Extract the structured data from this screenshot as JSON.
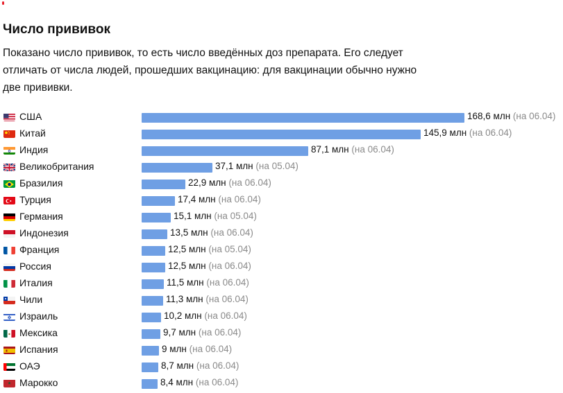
{
  "title": "Число прививок",
  "description": "Показано число прививок, то есть число введённых доз препарата. Его следует отличать от числа людей, прошедших вакцинацию: для вакцинации обычно нужно две прививки.",
  "colors": {
    "bar": "#6f9fe4",
    "date_text": "#8a8a8a",
    "accent_dot": "#e8212b"
  },
  "chart_data": {
    "type": "bar",
    "orientation": "horizontal",
    "unit": "млн",
    "categories": [
      "США",
      "Китай",
      "Индия",
      "Великобритания",
      "Бразилия",
      "Турция",
      "Германия",
      "Индонезия",
      "Франция",
      "Россия",
      "Италия",
      "Чили",
      "Израиль",
      "Мексика",
      "Испания",
      "ОАЭ",
      "Марокко"
    ],
    "values": [
      168.6,
      145.9,
      87.1,
      37.1,
      22.9,
      17.4,
      15.1,
      13.5,
      12.5,
      12.5,
      11.5,
      11.3,
      10.2,
      9.7,
      9,
      8.7,
      8.4
    ],
    "labels": [
      "168,6 млн",
      "145,9 млн",
      "87,1 млн",
      "37,1 млн",
      "22,9 млн",
      "17,4 млн",
      "15,1 млн",
      "13,5 млн",
      "12,5 млн",
      "12,5 млн",
      "11,5 млн",
      "11,3 млн",
      "10,2 млн",
      "9,7 млн",
      "9 млн",
      "8,7 млн",
      "8,4 млн"
    ],
    "dates": [
      "(на 06.04)",
      "(на 06.04)",
      "(на 06.04)",
      "(на 05.04)",
      "(на 06.04)",
      "(на 06.04)",
      "(на 05.04)",
      "(на 06.04)",
      "(на 05.04)",
      "(на 06.04)",
      "(на 06.04)",
      "(на 06.04)",
      "(на 06.04)",
      "(на 06.04)",
      "(на 06.04)",
      "(на 06.04)",
      "(на 06.04)"
    ],
    "flag_icons": [
      "us-flag-icon",
      "china-flag-icon",
      "india-flag-icon",
      "uk-flag-icon",
      "brazil-flag-icon",
      "turkey-flag-icon",
      "germany-flag-icon",
      "indonesia-flag-icon",
      "france-flag-icon",
      "russia-flag-icon",
      "italy-flag-icon",
      "chile-flag-icon",
      "israel-flag-icon",
      "mexico-flag-icon",
      "spain-flag-icon",
      "uae-flag-icon",
      "morocco-flag-icon"
    ]
  }
}
